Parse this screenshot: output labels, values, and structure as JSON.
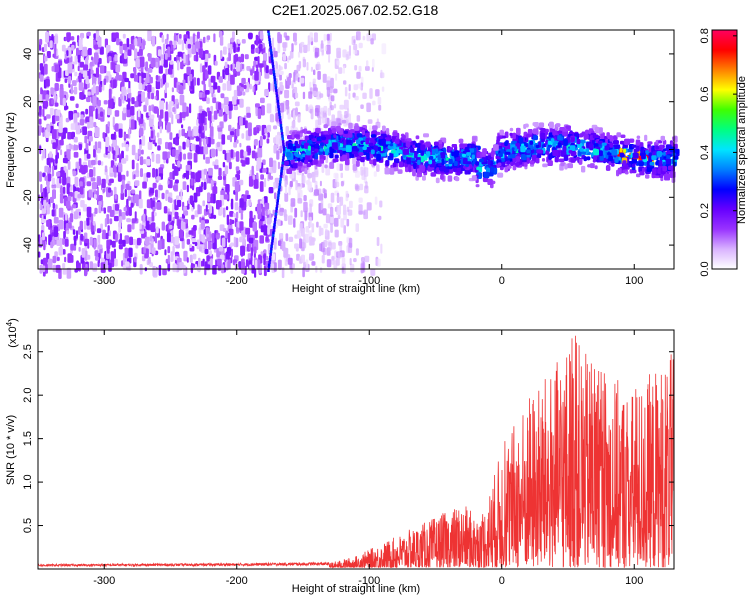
{
  "figure": {
    "title": "C2E1.2025.067.02.52.G18"
  },
  "chart_data": [
    {
      "type": "heatmap",
      "xlabel": "Height of straight line (km)",
      "ylabel": "Frequency (Hz)",
      "xlim": [
        -350,
        130
      ],
      "ylim": [
        -50,
        50
      ],
      "xticks": [
        -300,
        -200,
        -100,
        0,
        100
      ],
      "yticks": [
        -40,
        -20,
        0,
        20,
        40
      ],
      "colorbar": {
        "label": "Normalized spectral amplitude",
        "range": [
          0,
          0.82
        ],
        "ticks": [
          0.0,
          0.2,
          0.4,
          0.6,
          0.8
        ],
        "tick_labels": [
          "0.0",
          "0.2",
          "0.4",
          "0.6",
          "0.8"
        ],
        "colormap": [
          "#ffffff",
          "#d9b3ff",
          "#9933ff",
          "#6600ff",
          "#0000ff",
          "#0080ff",
          "#00e5ff",
          "#00ff80",
          "#40ff00",
          "#ffff00",
          "#ff8000",
          "#ff0000",
          "#ff0060"
        ]
      },
      "features": {
        "noise_region_x": [
          -350,
          -130
        ],
        "signal_band_x": [
          -165,
          130
        ],
        "signal_band_freq_center_hz": 0,
        "signal_band_halfwidth_hz": 7,
        "diagonal_line_x": [
          -180,
          -165
        ],
        "diagonal_line_freq": [
          -50,
          50
        ]
      }
    },
    {
      "type": "line",
      "xlabel": "Height of straight line (km)",
      "ylabel": "SNR (10 * v/v)",
      "y_multiplier": "(x10",
      "y_multiplier_exp": "4",
      "y_multiplier_close": ")",
      "xlim": [
        -350,
        130
      ],
      "ylim": [
        0,
        2.75
      ],
      "xticks": [
        -300,
        -200,
        -100,
        0,
        100
      ],
      "yticks": [
        0.5,
        1.0,
        1.5,
        2.0,
        2.5
      ],
      "ytick_labels": [
        "0.5",
        "1.0",
        "1.5",
        "2.0",
        "2.5"
      ],
      "line_color": "#ee3333",
      "envelope": {
        "x": [
          -350,
          -200,
          -130,
          -110,
          -90,
          -70,
          -50,
          -30,
          -15,
          0,
          20,
          40,
          55,
          70,
          85,
          100,
          115,
          130
        ],
        "y": [
          0.05,
          0.06,
          0.07,
          0.15,
          0.3,
          0.45,
          0.6,
          0.75,
          0.6,
          1.4,
          2.0,
          2.35,
          2.7,
          2.3,
          2.2,
          2.05,
          2.3,
          2.5
        ]
      }
    }
  ]
}
